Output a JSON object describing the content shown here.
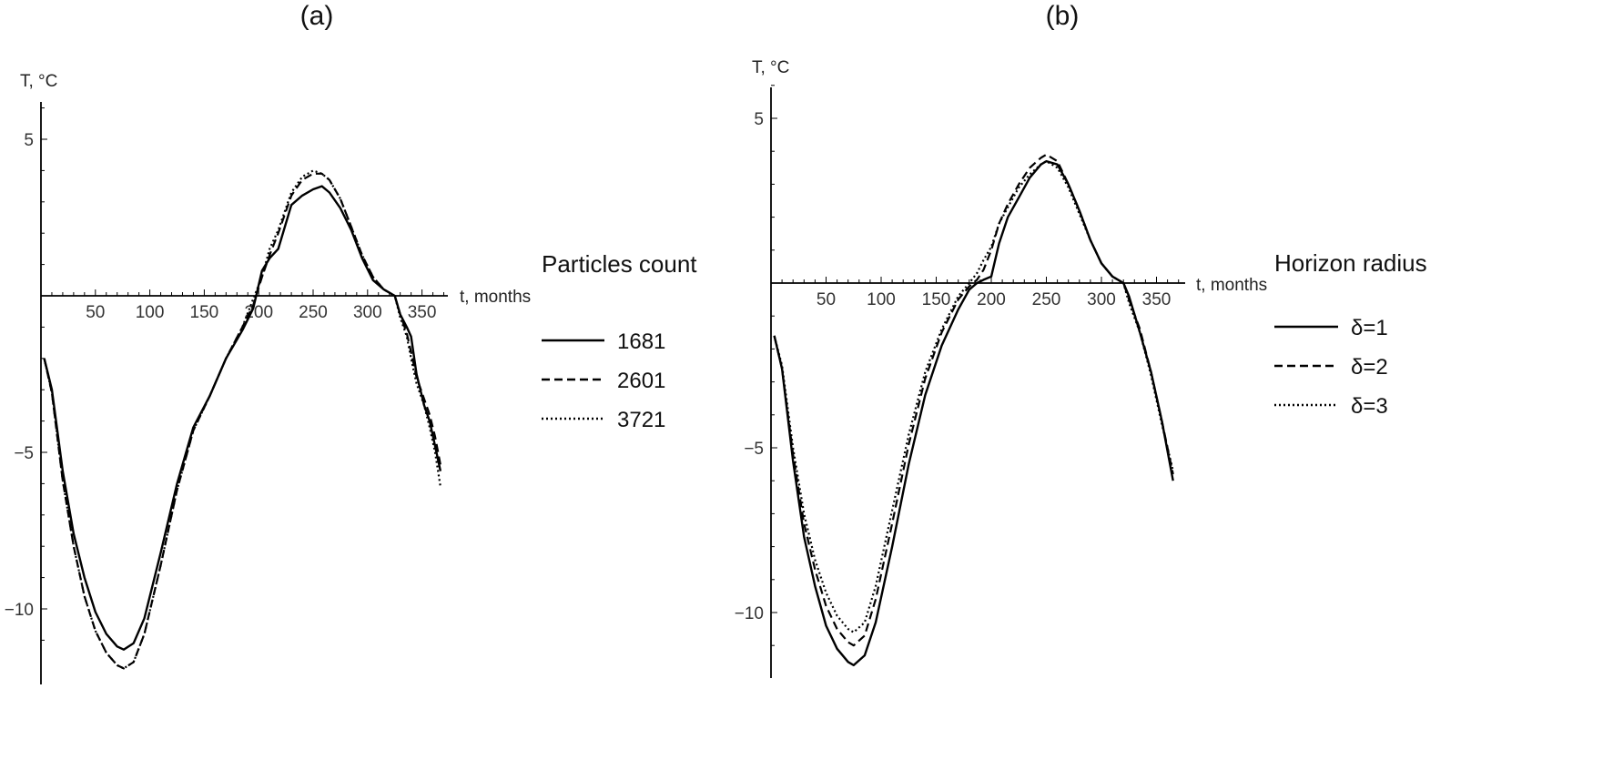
{
  "chart_data": [
    {
      "type": "line",
      "panel_label": "(a)",
      "xlabel": "t, months",
      "ylabel": "T, °C",
      "xlim": [
        0,
        370
      ],
      "ylim": [
        -11.8,
        6
      ],
      "xticks": [
        50,
        100,
        150,
        200,
        250,
        300,
        350
      ],
      "yticks": [
        -10,
        -5,
        5
      ],
      "grid": false,
      "legend_title": "Particles count",
      "legend_position": "right",
      "series": [
        {
          "name": "1681",
          "style": "solid",
          "x": [
            3,
            10,
            20,
            30,
            40,
            50,
            60,
            70,
            76,
            85,
            95,
            110,
            125,
            140,
            155,
            170,
            185,
            195,
            203,
            210,
            218,
            230,
            240,
            250,
            258,
            265,
            275,
            285,
            295,
            305,
            315,
            325,
            330,
            336,
            340,
            345,
            352,
            357,
            362,
            367
          ],
          "y": [
            -2.0,
            -3.0,
            -5.6,
            -7.6,
            -9.0,
            -10.1,
            -10.8,
            -11.2,
            -11.3,
            -11.1,
            -10.3,
            -8.2,
            -6.0,
            -4.2,
            -3.2,
            -2.0,
            -1.1,
            -0.4,
            0.8,
            1.2,
            1.5,
            2.9,
            3.2,
            3.4,
            3.5,
            3.3,
            2.8,
            2.1,
            1.2,
            0.5,
            0.2,
            0.0,
            -0.6,
            -1.0,
            -1.3,
            -2.5,
            -3.5,
            -4.0,
            -4.8,
            -5.6
          ]
        },
        {
          "name": "2601",
          "style": "dashed",
          "x": [
            3,
            10,
            20,
            30,
            40,
            50,
            60,
            70,
            76,
            85,
            95,
            110,
            125,
            140,
            155,
            170,
            185,
            195,
            203,
            210,
            218,
            230,
            240,
            250,
            258,
            265,
            275,
            285,
            295,
            305,
            315,
            325,
            330,
            336,
            340,
            345,
            352,
            357,
            362,
            367
          ],
          "y": [
            -2.0,
            -3.1,
            -5.9,
            -8.0,
            -9.6,
            -10.7,
            -11.4,
            -11.8,
            -11.9,
            -11.7,
            -10.8,
            -8.6,
            -6.2,
            -4.3,
            -3.2,
            -2.0,
            -1.0,
            -0.3,
            0.6,
            1.3,
            2.0,
            3.2,
            3.7,
            3.9,
            3.9,
            3.7,
            3.1,
            2.2,
            1.3,
            0.6,
            0.2,
            0.0,
            -0.6,
            -1.2,
            -1.8,
            -2.6,
            -3.3,
            -3.8,
            -4.5,
            -5.4
          ]
        },
        {
          "name": "3721",
          "style": "dotted",
          "x": [
            3,
            10,
            20,
            30,
            40,
            50,
            60,
            70,
            76,
            85,
            95,
            110,
            125,
            140,
            155,
            170,
            185,
            195,
            203,
            210,
            218,
            230,
            240,
            250,
            258,
            265,
            275,
            285,
            295,
            305,
            315,
            325,
            330,
            336,
            340,
            345,
            352,
            357,
            362,
            367
          ],
          "y": [
            -2.0,
            -3.1,
            -5.9,
            -8.0,
            -9.6,
            -10.7,
            -11.4,
            -11.8,
            -11.9,
            -11.7,
            -10.8,
            -8.6,
            -6.2,
            -4.3,
            -3.2,
            -2.0,
            -1.0,
            -0.1,
            0.6,
            1.5,
            2.1,
            3.3,
            3.8,
            4.0,
            3.9,
            3.7,
            3.1,
            2.2,
            1.3,
            0.6,
            0.2,
            0.0,
            -0.7,
            -1.3,
            -2.0,
            -2.8,
            -3.5,
            -4.2,
            -5.0,
            -6.1
          ]
        }
      ]
    },
    {
      "type": "line",
      "panel_label": "(b)",
      "xlabel": "t, months",
      "ylabel": "T, °C",
      "xlim": [
        0,
        370
      ],
      "ylim": [
        -11.6,
        6
      ],
      "xticks": [
        50,
        100,
        150,
        200,
        250,
        300,
        350
      ],
      "yticks": [
        -10,
        -5,
        5
      ],
      "grid": false,
      "legend_title": "Horizon radius",
      "legend_position": "right",
      "series": [
        {
          "name": "δ=1",
          "style": "solid",
          "x": [
            3,
            10,
            20,
            30,
            40,
            50,
            60,
            70,
            75,
            85,
            95,
            110,
            125,
            140,
            155,
            170,
            180,
            187,
            193,
            200,
            207,
            215,
            225,
            235,
            245,
            250,
            260,
            270,
            280,
            290,
            300,
            310,
            320,
            325,
            335,
            345,
            355,
            365
          ],
          "y": [
            -1.6,
            -2.6,
            -5.4,
            -7.7,
            -9.2,
            -10.4,
            -11.1,
            -11.5,
            -11.6,
            -11.3,
            -10.3,
            -8.0,
            -5.5,
            -3.4,
            -1.9,
            -0.8,
            -0.2,
            0.0,
            0.1,
            0.2,
            1.2,
            2.0,
            2.6,
            3.2,
            3.6,
            3.7,
            3.6,
            3.0,
            2.2,
            1.3,
            0.6,
            0.2,
            0.0,
            -0.4,
            -1.5,
            -2.7,
            -4.2,
            -6.0
          ]
        },
        {
          "name": "δ=2",
          "style": "dashed",
          "x": [
            3,
            10,
            20,
            30,
            40,
            50,
            60,
            70,
            75,
            85,
            95,
            110,
            125,
            140,
            155,
            170,
            180,
            187,
            193,
            200,
            207,
            215,
            225,
            235,
            245,
            250,
            260,
            270,
            280,
            290,
            300,
            310,
            320,
            325,
            335,
            345,
            355,
            365
          ],
          "y": [
            -1.6,
            -2.6,
            -5.2,
            -7.3,
            -8.7,
            -9.8,
            -10.5,
            -10.9,
            -11.0,
            -10.7,
            -9.6,
            -7.3,
            -4.9,
            -2.9,
            -1.5,
            -0.5,
            -0.1,
            0.1,
            0.4,
            1.0,
            1.8,
            2.4,
            3.0,
            3.5,
            3.8,
            3.9,
            3.7,
            3.0,
            2.2,
            1.3,
            0.6,
            0.2,
            0.0,
            -0.5,
            -1.4,
            -2.7,
            -4.2,
            -5.8
          ]
        },
        {
          "name": "δ=3",
          "style": "dotted",
          "x": [
            3,
            10,
            20,
            30,
            40,
            50,
            60,
            70,
            75,
            85,
            95,
            110,
            125,
            140,
            155,
            170,
            180,
            187,
            193,
            200,
            207,
            215,
            225,
            235,
            245,
            250,
            260,
            270,
            280,
            290,
            300,
            310,
            320,
            325,
            335,
            345,
            355,
            365
          ],
          "y": [
            -1.6,
            -2.5,
            -5.0,
            -7.0,
            -8.4,
            -9.4,
            -10.1,
            -10.5,
            -10.6,
            -10.3,
            -9.2,
            -6.9,
            -4.6,
            -2.7,
            -1.4,
            -0.4,
            0.0,
            0.3,
            0.7,
            1.1,
            1.8,
            2.3,
            2.9,
            3.3,
            3.6,
            3.7,
            3.5,
            2.9,
            2.1,
            1.3,
            0.6,
            0.2,
            0.0,
            -0.6,
            -1.5,
            -2.8,
            -4.3,
            -5.7
          ]
        }
      ]
    }
  ]
}
